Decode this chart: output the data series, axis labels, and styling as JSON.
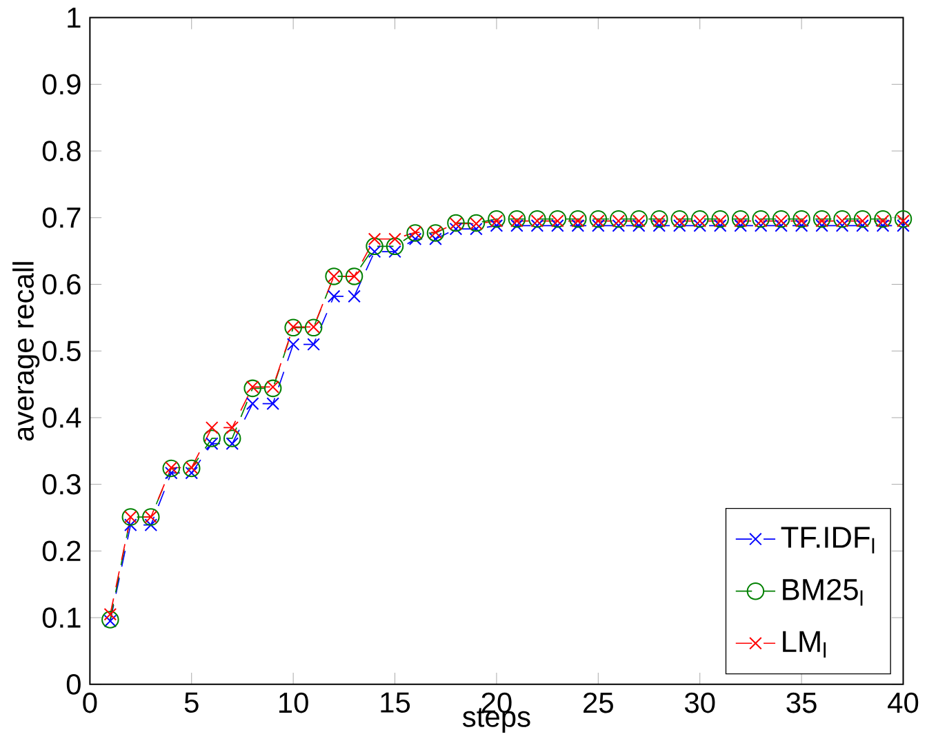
{
  "chart_data": {
    "type": "line",
    "xlabel": "steps",
    "ylabel": "average recall",
    "x": [
      1,
      2,
      3,
      4,
      5,
      6,
      7,
      8,
      9,
      10,
      11,
      12,
      13,
      14,
      15,
      16,
      17,
      18,
      19,
      20,
      21,
      22,
      23,
      24,
      25,
      26,
      27,
      28,
      29,
      30,
      31,
      32,
      33,
      34,
      35,
      36,
      37,
      38,
      39,
      40
    ],
    "xlim": [
      0,
      40
    ],
    "xticks": [
      0,
      5,
      10,
      15,
      20,
      25,
      30,
      35,
      40
    ],
    "ylim": [
      0,
      1
    ],
    "yticks": [
      0,
      0.1,
      0.2,
      0.3,
      0.4,
      0.5,
      0.6,
      0.7,
      0.8,
      0.9,
      1
    ],
    "legend": "bottom right",
    "line_style": "dashed",
    "series": [
      {
        "name": "TF.IDF$_{l}$",
        "color": "#0000ff",
        "marker": "cross",
        "values": [
          0.095,
          0.239,
          0.239,
          0.317,
          0.317,
          0.361,
          0.361,
          0.421,
          0.421,
          0.51,
          0.51,
          0.582,
          0.582,
          0.649,
          0.649,
          0.668,
          0.668,
          0.683,
          0.683,
          0.688,
          0.688,
          0.688,
          0.688,
          0.688,
          0.688,
          0.688,
          0.688,
          0.688,
          0.688,
          0.688,
          0.688,
          0.688,
          0.688,
          0.688,
          0.688,
          0.688,
          0.688,
          0.688,
          0.688,
          0.688
        ]
      },
      {
        "name": "BM25$_{l}$",
        "color": "#008000",
        "marker": "circle",
        "values": [
          0.097,
          0.251,
          0.251,
          0.324,
          0.324,
          0.369,
          0.369,
          0.444,
          0.444,
          0.535,
          0.535,
          0.612,
          0.612,
          0.657,
          0.657,
          0.677,
          0.677,
          0.692,
          0.692,
          0.698,
          0.698,
          0.698,
          0.698,
          0.698,
          0.698,
          0.698,
          0.698,
          0.698,
          0.698,
          0.698,
          0.698,
          0.698,
          0.698,
          0.698,
          0.698,
          0.698,
          0.698,
          0.698,
          0.698,
          0.698
        ]
      },
      {
        "name": "LM$_{l}$",
        "color": "#ff0000",
        "marker": "cross",
        "values": [
          0.105,
          0.251,
          0.251,
          0.325,
          0.325,
          0.385,
          0.385,
          0.446,
          0.446,
          0.536,
          0.536,
          0.612,
          0.612,
          0.668,
          0.668,
          0.678,
          0.678,
          0.691,
          0.691,
          0.695,
          0.695,
          0.695,
          0.695,
          0.695,
          0.695,
          0.695,
          0.695,
          0.695,
          0.695,
          0.695,
          0.695,
          0.695,
          0.695,
          0.695,
          0.695,
          0.695,
          0.695,
          0.695,
          0.695,
          0.695
        ]
      }
    ]
  }
}
